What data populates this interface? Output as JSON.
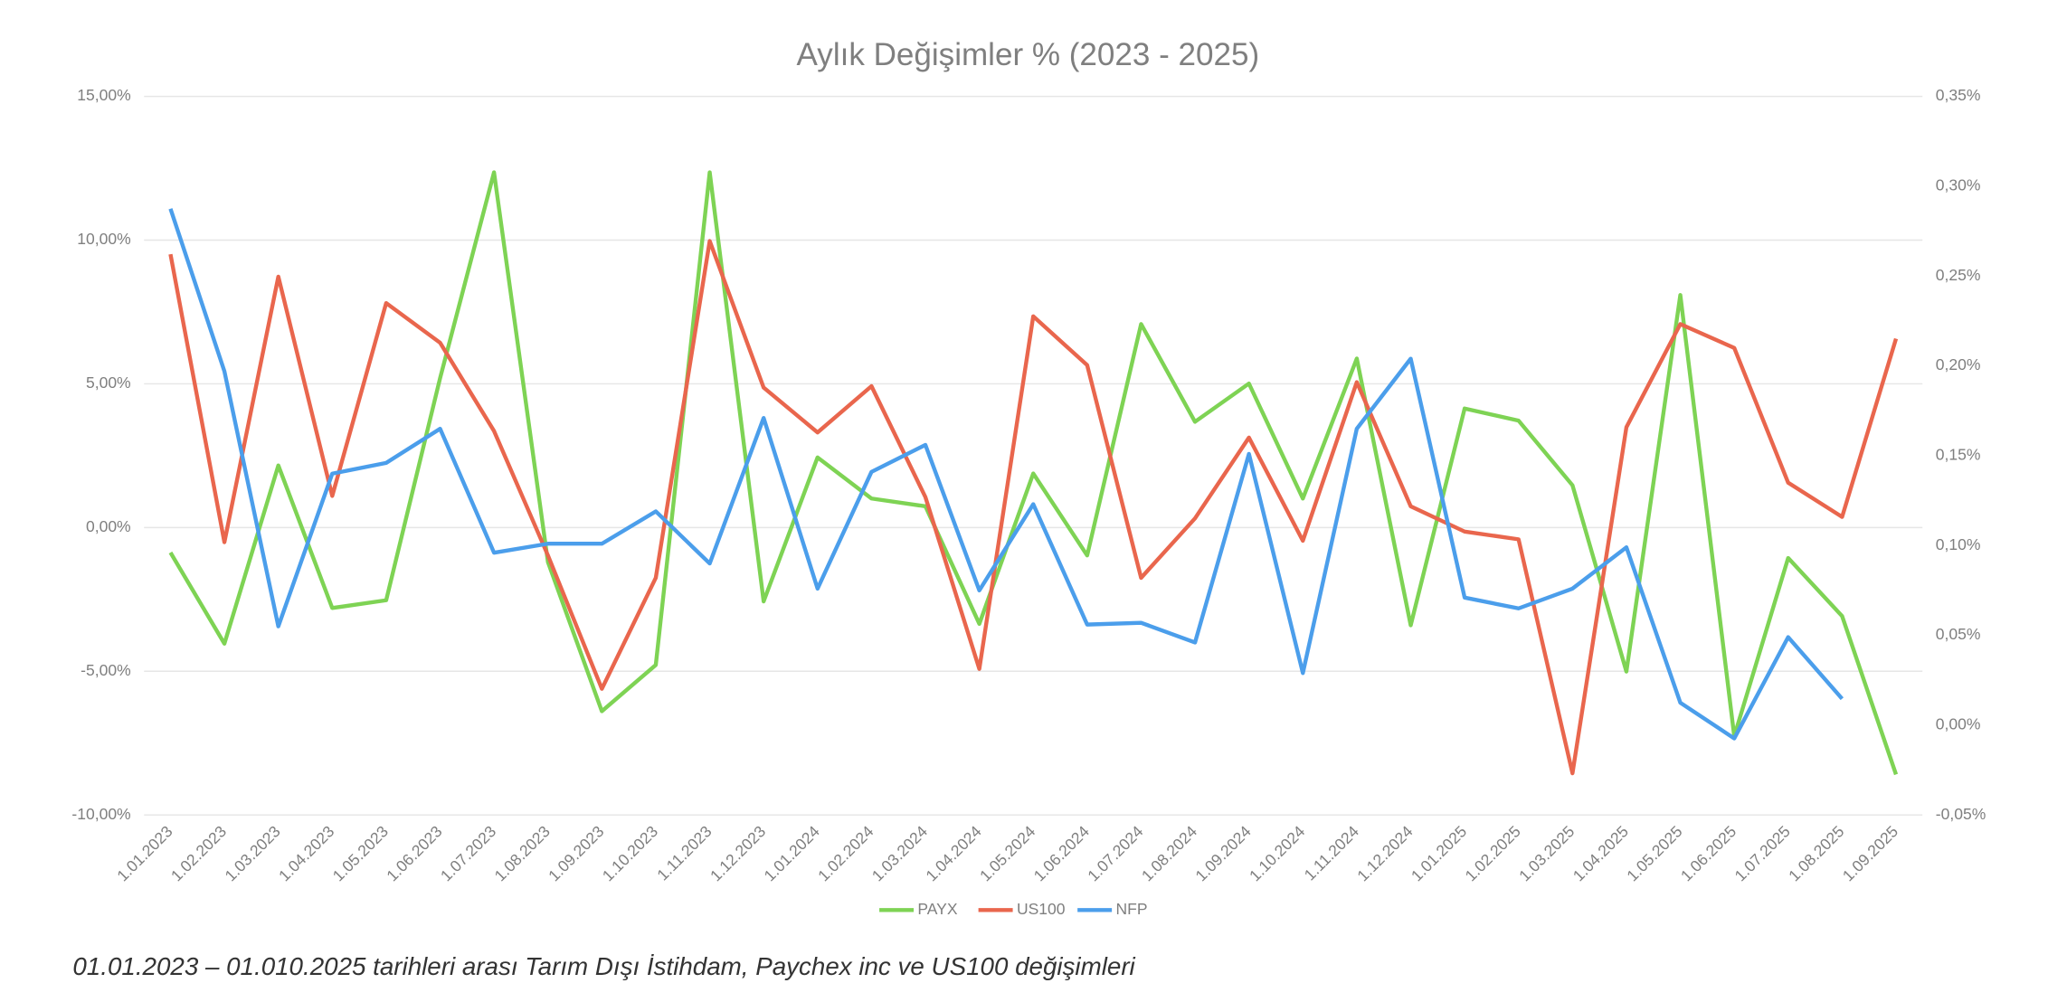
{
  "chart_data": {
    "type": "line",
    "title": "Aylık Değişimler % (2023 - 2025)",
    "caption": "01.01.2023 – 01.010.2025 tarihleri arası Tarım Dışı İstihdam, Paychex inc ve US100 değişimleri",
    "categories": [
      "1.01.2023",
      "1.02.2023",
      "1.03.2023",
      "1.04.2023",
      "1.05.2023",
      "1.06.2023",
      "1.07.2023",
      "1.08.2023",
      "1.09.2023",
      "1.10.2023",
      "1.11.2023",
      "1.12.2023",
      "1.01.2024",
      "1.02.2024",
      "1.03.2024",
      "1.04.2024",
      "1.05.2024",
      "1.06.2024",
      "1.07.2024",
      "1.08.2024",
      "1.09.2024",
      "1.10.2024",
      "1.11.2024",
      "1.12.2024",
      "1.01.2025",
      "1.02.2025",
      "1.03.2025",
      "1.04.2025",
      "1.05.2025",
      "1.06.2025",
      "1.07.2025",
      "1.08.2025",
      "1.09.2025"
    ],
    "series": [
      {
        "name": "PAYX",
        "color": "#7ed354",
        "values": [
          -0.87,
          -4.04,
          2.16,
          -2.8,
          -2.53,
          5.2,
          12.36,
          -1.2,
          -6.39,
          -4.78,
          12.36,
          -2.57,
          2.44,
          1.01,
          0.74,
          -3.35,
          1.88,
          -0.97,
          7.08,
          3.68,
          5.01,
          1.01,
          5.88,
          -3.4,
          4.14,
          3.72,
          1.47,
          -5.01,
          8.09,
          -7.26,
          -1.06,
          -3.08,
          -8.59
        ]
      },
      {
        "name": "US100",
        "color": "#e9664d",
        "values": [
          9.51,
          -0.51,
          8.73,
          1.1,
          7.81,
          6.43,
          3.36,
          -0.97,
          -5.61,
          -1.75,
          9.97,
          4.87,
          3.31,
          4.92,
          1.06,
          -4.92,
          7.35,
          5.65,
          -1.75,
          0.32,
          3.13,
          -0.46,
          5.06,
          0.74,
          -0.14,
          -0.41,
          -8.55,
          3.49,
          7.08,
          6.25,
          1.56,
          0.37,
          6.57
        ]
      },
      {
        "name": "NFP",
        "color": "#4b9eeb",
        "axis": "y2",
        "values": [
          0.2875,
          0.197,
          0.055,
          0.14,
          0.146,
          0.165,
          0.096,
          0.101,
          0.101,
          0.119,
          0.09,
          0.171,
          0.076,
          0.141,
          0.156,
          0.075,
          0.123,
          0.056,
          0.057,
          0.046,
          0.151,
          0.029,
          0.165,
          0.204,
          0.071,
          0.065,
          0.076,
          0.099,
          0.0125,
          -0.0074,
          0.049,
          0.0147,
          null
        ]
      }
    ],
    "ylim": [
      -10,
      15
    ],
    "yticks": [
      {
        "value": -10,
        "label": "-10,00%"
      },
      {
        "value": -5,
        "label": "-5,00%"
      },
      {
        "value": 0,
        "label": "0,00%"
      },
      {
        "value": 5,
        "label": "5,00%"
      },
      {
        "value": 10,
        "label": "10,00%"
      },
      {
        "value": 15,
        "label": "15,00%"
      }
    ],
    "y2lim": [
      -0.05,
      0.35
    ],
    "y2ticks": [
      {
        "value": -0.05,
        "label": "-0,05%"
      },
      {
        "value": 0,
        "label": "0,00%"
      },
      {
        "value": 0.05,
        "label": "0,05%"
      },
      {
        "value": 0.1,
        "label": "0,10%"
      },
      {
        "value": 0.15,
        "label": "0,15%"
      },
      {
        "value": 0.2,
        "label": "0,20%"
      },
      {
        "value": 0.25,
        "label": "0,25%"
      },
      {
        "value": 0.3,
        "label": "0,30%"
      },
      {
        "value": 0.35,
        "label": "0,35%"
      }
    ],
    "grid": true,
    "legend": "bottom"
  }
}
